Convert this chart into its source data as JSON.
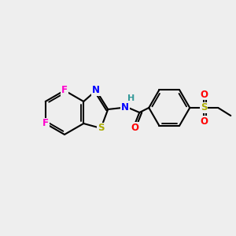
{
  "bg_color": "#eeeeee",
  "bond_color": "#000000",
  "bond_width": 1.5,
  "atom_colors": {
    "F": "#ff00cc",
    "N": "#0000ff",
    "S_thiazole": "#aaaa00",
    "S_sulfonyl": "#aaaa00",
    "O": "#ff0000",
    "H": "#339999",
    "C": "#000000"
  },
  "figsize": [
    3.0,
    3.0
  ],
  "dpi": 100
}
